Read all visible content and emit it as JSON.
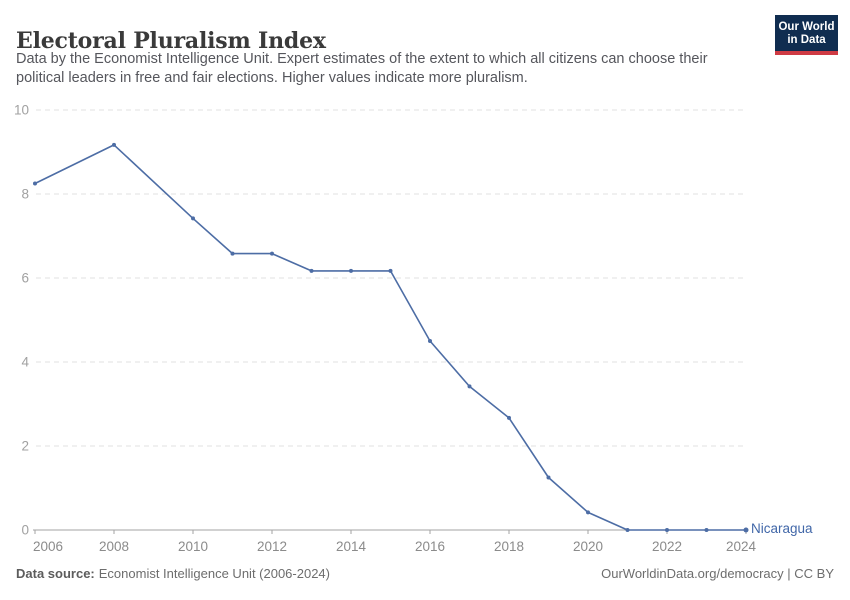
{
  "header": {
    "title": "Electoral Pluralism Index",
    "subtitle_line1": "Data by the Economist Intelligence Unit. Expert estimates of the extent to which all citizens can choose their",
    "subtitle_line2": "political leaders in free and fair elections. Higher values indicate more pluralism.",
    "logo": {
      "line1": "Our World",
      "line2": "in Data"
    }
  },
  "footer": {
    "data_source_label": "Data source:",
    "data_source_value": "Economist Intelligence Unit (2006-2024)",
    "credit": "OurWorldinData.org/democracy | CC BY"
  },
  "colors": {
    "line": "#4d6da5",
    "entity_label": "#4167a8",
    "grid": "#e0e0e0",
    "axis": "#a3a3a3",
    "x_tick_label": "#8b8b8b",
    "y_tick_label": "#a1a1a1",
    "logo_navy": "#102d50",
    "logo_red": "#cf3b44"
  },
  "chart_data": {
    "type": "line",
    "title": "Electoral Pluralism Index",
    "xlabel": "",
    "ylabel": "",
    "xlim": [
      2006,
      2024
    ],
    "ylim": [
      0,
      10
    ],
    "grid": true,
    "legend_position": "end-of-line",
    "xticks": [
      2006,
      2008,
      2010,
      2012,
      2014,
      2016,
      2018,
      2020,
      2022,
      2024
    ],
    "yticks": [
      0,
      2,
      4,
      6,
      8,
      10
    ],
    "series": [
      {
        "name": "Nicaragua",
        "x": [
          2006,
          2008,
          2010,
          2011,
          2012,
          2013,
          2014,
          2015,
          2016,
          2017,
          2018,
          2019,
          2020,
          2021,
          2022,
          2023,
          2024
        ],
        "values": [
          8.25,
          9.17,
          7.42,
          6.58,
          6.58,
          6.17,
          6.17,
          6.17,
          4.5,
          3.42,
          2.67,
          1.25,
          0.42,
          0,
          0,
          0,
          0
        ]
      }
    ]
  }
}
